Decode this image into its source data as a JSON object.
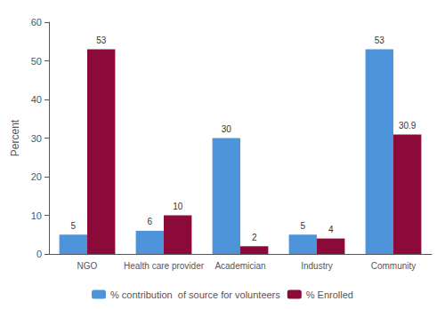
{
  "chart_data": {
    "type": "bar",
    "categories": [
      "NGO",
      "Health care provider",
      "Academician",
      "Industry",
      "Community"
    ],
    "series": [
      {
        "name": "% contribution  of source for volunteers",
        "color": "#4d94db",
        "values": [
          5,
          6,
          30,
          5,
          53
        ]
      },
      {
        "name": "% Enrolled",
        "color": "#8b0a3a",
        "values": [
          53,
          10,
          2,
          4,
          30.9
        ]
      }
    ],
    "ylabel": "Percent",
    "ylim": [
      0,
      60
    ],
    "yticks": [
      0,
      10,
      20,
      30,
      40,
      50,
      60
    ],
    "grid": false,
    "legend": "bottom",
    "data_labels": true
  }
}
